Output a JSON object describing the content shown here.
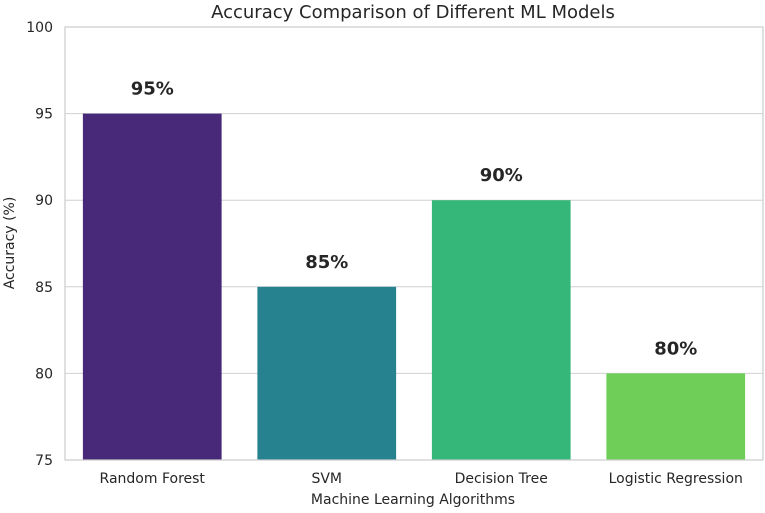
{
  "chart_data": {
    "type": "bar",
    "title": "Accuracy Comparison of Different ML Models",
    "xlabel": "Machine Learning Algorithms",
    "ylabel": "Accuracy (%)",
    "categories": [
      "Random Forest",
      "SVM",
      "Decision Tree",
      "Logistic Regression"
    ],
    "values": [
      95,
      85,
      90,
      80
    ],
    "data_labels": [
      "95%",
      "85%",
      "90%",
      "80%"
    ],
    "colors": [
      "#482878",
      "#26828e",
      "#35b779",
      "#6ece58"
    ],
    "ylim": [
      75,
      100
    ],
    "yticks": [
      75,
      80,
      85,
      90,
      95,
      100
    ],
    "grid": "horizontal",
    "legend": "none"
  },
  "style": {
    "grid_color": "#d0d0d0",
    "spine_color": "#cccccc",
    "text_color": "#262626"
  }
}
